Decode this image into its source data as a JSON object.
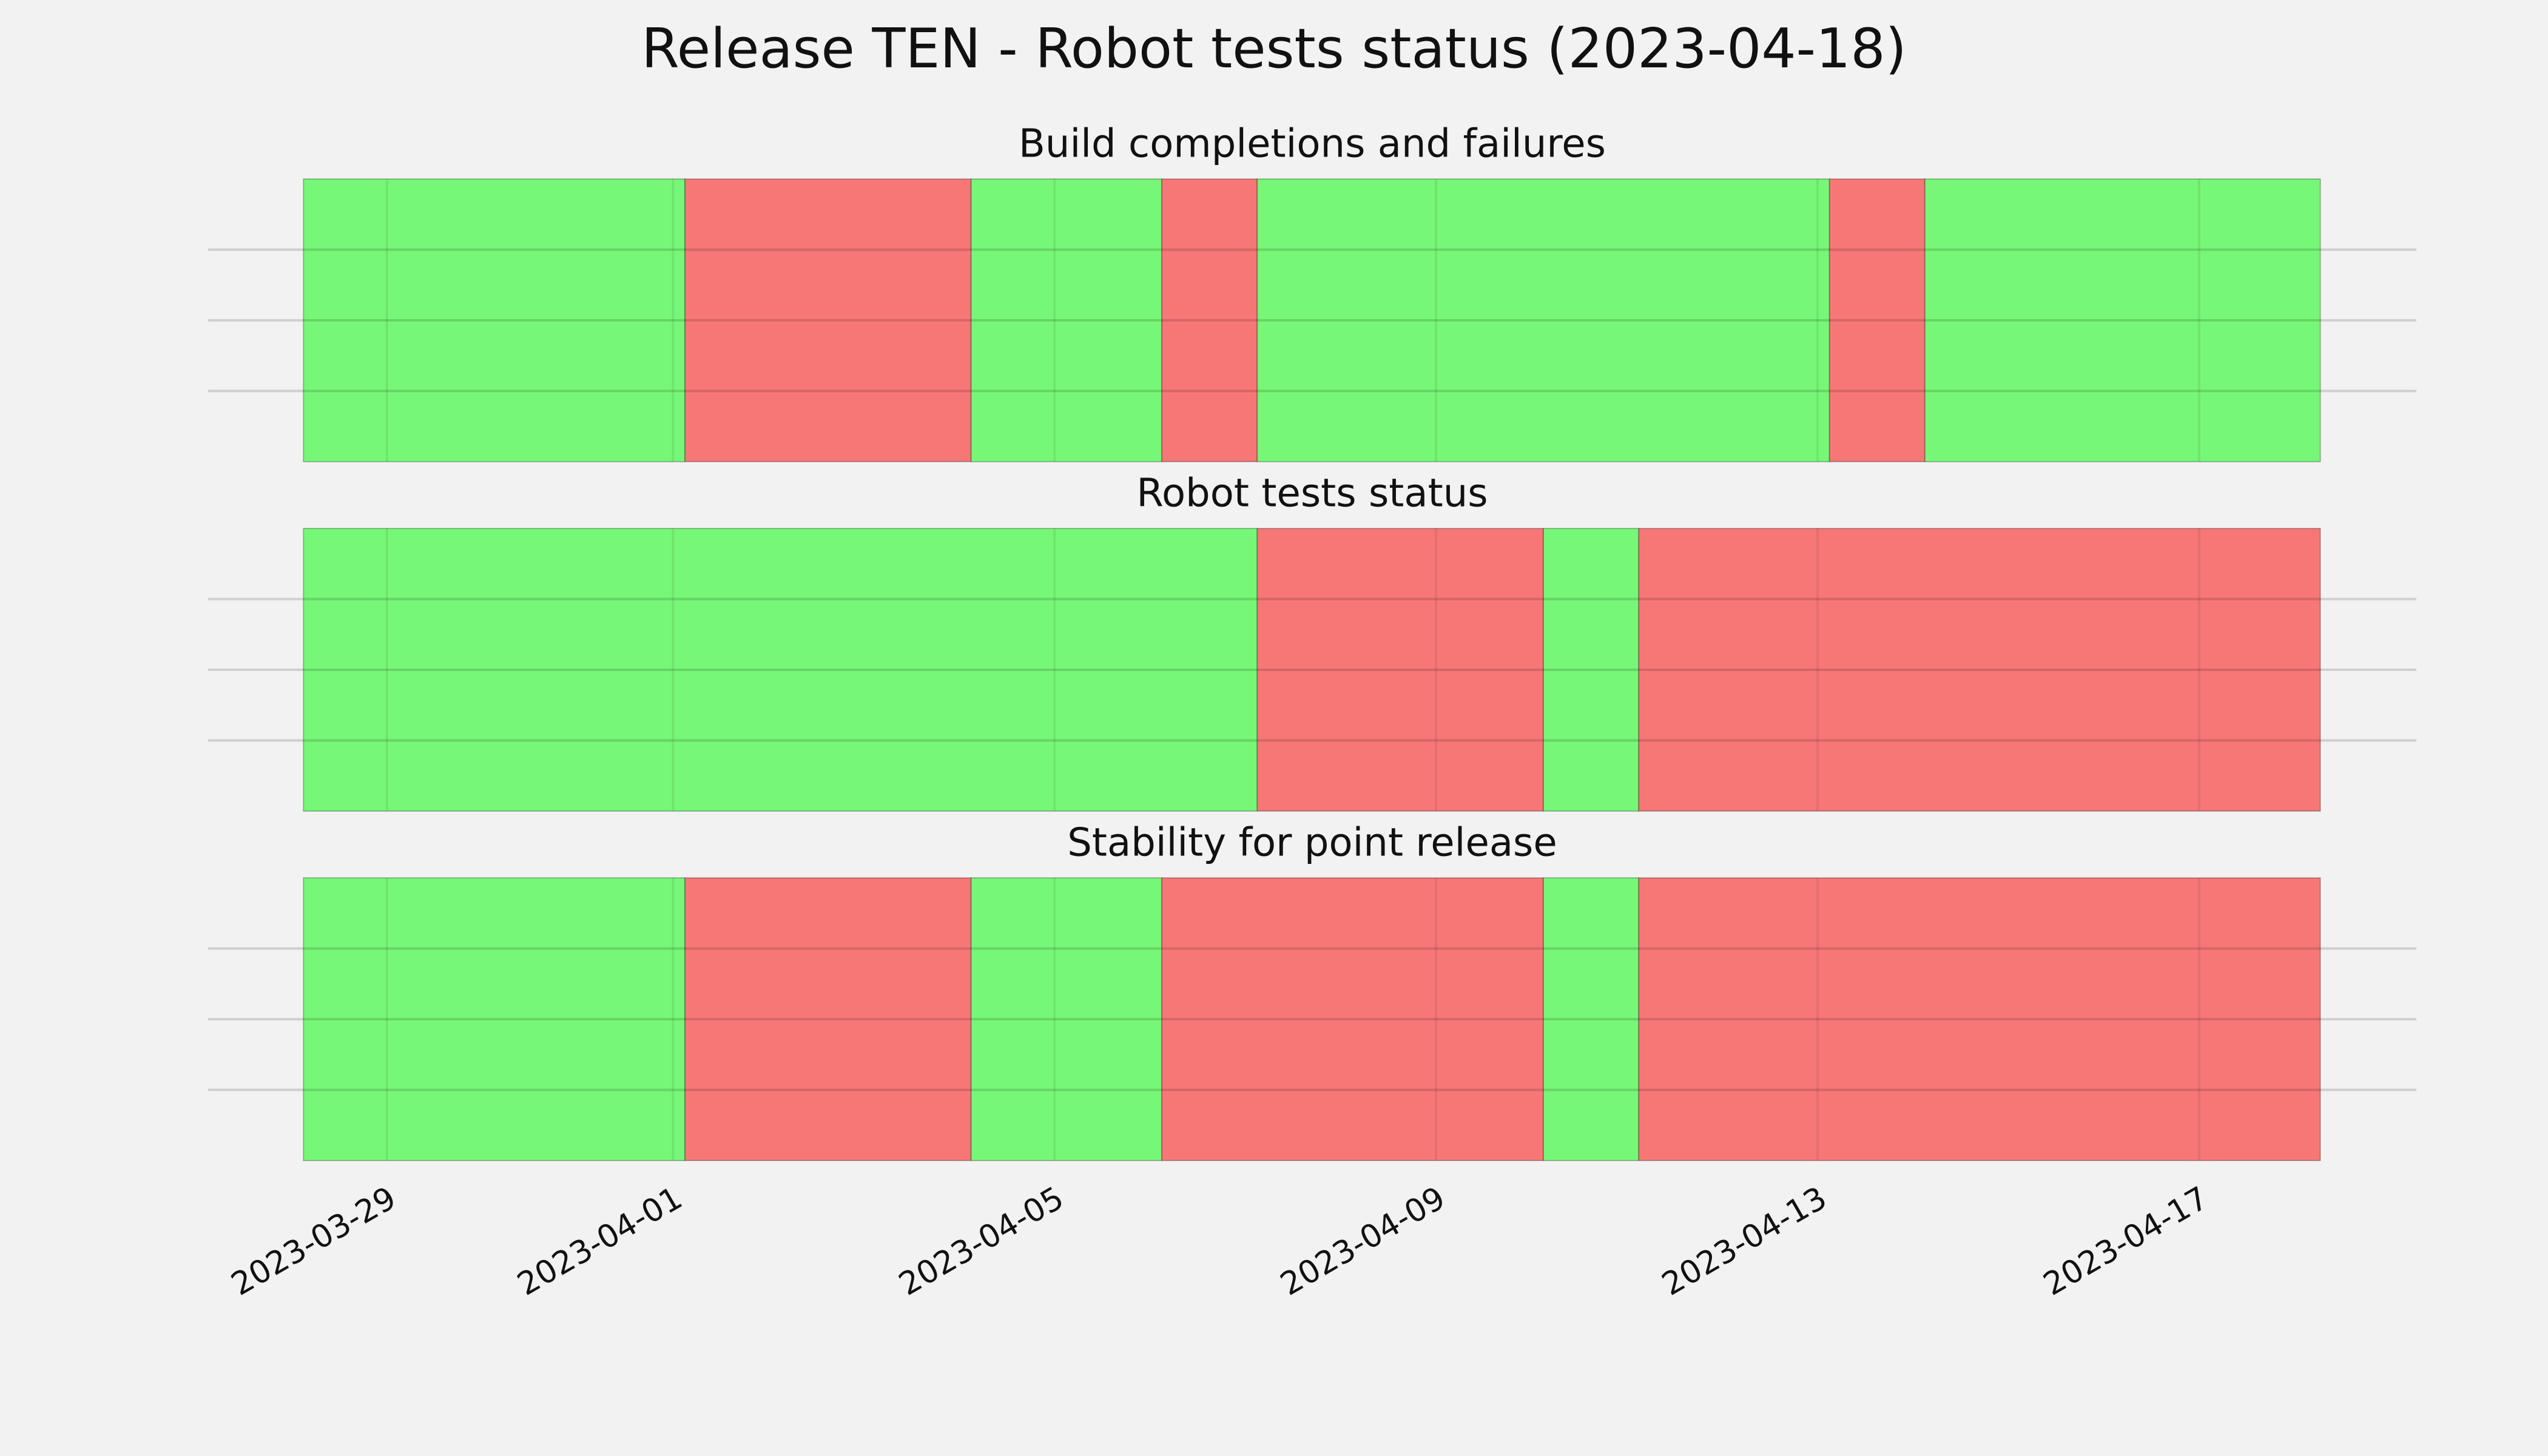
{
  "chart_data": {
    "type": "timeline",
    "title": "Release TEN - Robot tests status (2023-04-18)",
    "xlim": [
      "2023-03-27T03:00",
      "2023-04-19T06:40"
    ],
    "xticks": [
      "2023-03-29",
      "2023-04-01",
      "2023-04-05",
      "2023-04-09",
      "2023-04-13",
      "2023-04-17"
    ],
    "ylim": [
      0,
      1
    ],
    "yticks": [
      0.25,
      0.5,
      0.75
    ],
    "grid": true,
    "panels": [
      {
        "title": "Build completions and failures",
        "segments": [
          {
            "start": "2023-03-28T03:00",
            "end": "2023-04-01T03:00",
            "color": "#77f777"
          },
          {
            "start": "2023-04-01T03:00",
            "end": "2023-04-04T03:00",
            "color": "#f77777"
          },
          {
            "start": "2023-04-04T03:00",
            "end": "2023-04-06T03:00",
            "color": "#77f777"
          },
          {
            "start": "2023-04-06T03:00",
            "end": "2023-04-07T03:00",
            "color": "#f77777"
          },
          {
            "start": "2023-04-07T03:00",
            "end": "2023-04-13T03:00",
            "color": "#77f777"
          },
          {
            "start": "2023-04-13T03:00",
            "end": "2023-04-14T03:00",
            "color": "#f77777"
          },
          {
            "start": "2023-04-14T03:00",
            "end": "2023-04-18T06:30",
            "color": "#77f777"
          }
        ]
      },
      {
        "title": "Robot tests status",
        "segments": [
          {
            "start": "2023-03-28T03:00",
            "end": "2023-04-07T03:00",
            "color": "#77f777"
          },
          {
            "start": "2023-04-07T03:00",
            "end": "2023-04-10T03:00",
            "color": "#f77777"
          },
          {
            "start": "2023-04-10T03:00",
            "end": "2023-04-11T03:00",
            "color": "#77f777"
          },
          {
            "start": "2023-04-11T03:00",
            "end": "2023-04-18T06:30",
            "color": "#f77777"
          }
        ]
      },
      {
        "title": "Stability for point release",
        "segments": [
          {
            "start": "2023-03-28T03:00",
            "end": "2023-04-01T03:00",
            "color": "#77f777"
          },
          {
            "start": "2023-04-01T03:00",
            "end": "2023-04-04T03:00",
            "color": "#f77777"
          },
          {
            "start": "2023-04-04T03:00",
            "end": "2023-04-06T03:00",
            "color": "#77f777"
          },
          {
            "start": "2023-04-06T03:00",
            "end": "2023-04-10T03:00",
            "color": "#f77777"
          },
          {
            "start": "2023-04-10T03:00",
            "end": "2023-04-11T03:00",
            "color": "#77f777"
          },
          {
            "start": "2023-04-11T03:00",
            "end": "2023-04-18T06:30",
            "color": "#f77777"
          }
        ]
      }
    ]
  }
}
